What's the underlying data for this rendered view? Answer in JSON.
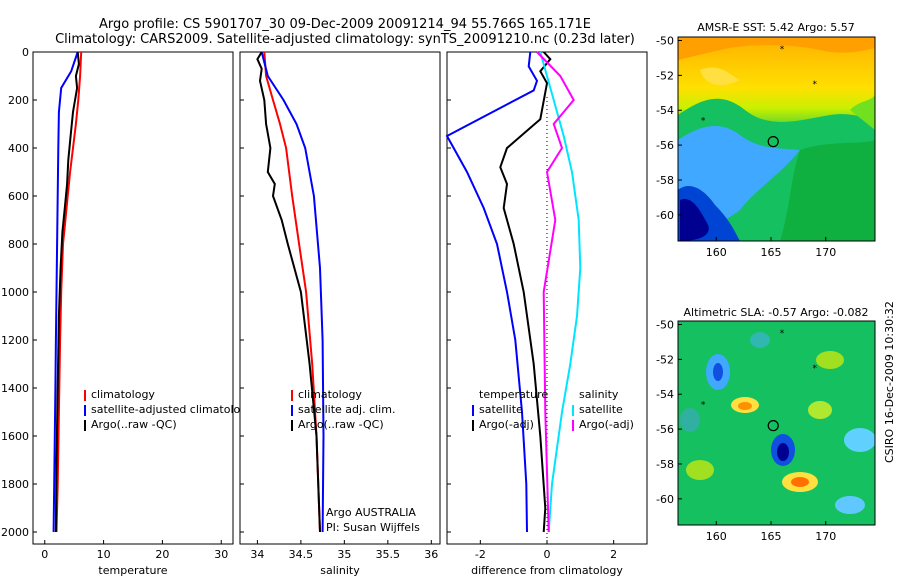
{
  "header": {
    "title_line1": "Argo profile: CS 5901707_30 09-Dec-2009 20091214_94 55.766S 165.171E",
    "title_line2": "Climatology: CARS2009. Satellite-adjusted climatology: synTS_20091210.nc (0.23d later)"
  },
  "colors": {
    "climatology": "#ff0000",
    "satellite": "#0000ff",
    "argo": "#000000",
    "salinity_satellite": "#00e5ff",
    "salinity_argo": "#ff00ff"
  },
  "chart_data": [
    {
      "type": "line",
      "xlabel": "temperature",
      "x_ticks": [
        "0",
        "10",
        "20",
        "30"
      ],
      "xlim": [
        -2,
        32
      ],
      "ylim": [
        2050,
        0
      ],
      "y_ticks": [
        "0",
        "200",
        "400",
        "600",
        "800",
        "1000",
        "1200",
        "1400",
        "1600",
        "1800",
        "2000"
      ],
      "legend": [
        "climatology",
        "satellite-adjusted climatology",
        "Argo(..raw -QC)"
      ],
      "series": [
        {
          "name": "climatology",
          "color": "#ff0000",
          "x": [
            6.2,
            6.0,
            5.7,
            5.3,
            4.8,
            4.3,
            3.9,
            3.5,
            3.1,
            2.8,
            2.6,
            2.4,
            2.2,
            2.0
          ],
          "y": [
            0,
            100,
            200,
            300,
            400,
            500,
            600,
            700,
            800,
            1000,
            1200,
            1500,
            1800,
            2000
          ]
        },
        {
          "name": "satellite-adjusted climatology",
          "color": "#0000ff",
          "x": [
            5.6,
            4.5,
            2.8,
            2.4,
            2.3,
            2.2,
            2.1,
            2.0,
            1.9,
            1.8,
            1.7,
            1.6,
            1.5
          ],
          "y": [
            0,
            80,
            150,
            250,
            400,
            600,
            800,
            1000,
            1200,
            1400,
            1600,
            1800,
            2000
          ]
        },
        {
          "name": "Argo(..raw -QC)",
          "color": "#000000",
          "x": [
            5.6,
            5.8,
            5.3,
            5.5,
            4.8,
            4.4,
            4.0,
            3.8,
            3.4,
            3.0,
            2.7,
            2.4,
            2.2,
            2.0,
            1.9
          ],
          "y": [
            0,
            50,
            100,
            150,
            250,
            350,
            450,
            550,
            650,
            750,
            900,
            1100,
            1400,
            1700,
            2000
          ]
        }
      ]
    },
    {
      "type": "line",
      "xlabel": "salinity",
      "x_ticks": [
        "34",
        "34.5",
        "35",
        "35.5",
        "36"
      ],
      "xlim": [
        33.8,
        36.1
      ],
      "ylim": [
        2050,
        0
      ],
      "legend": [
        "climatology",
        "satellite adj. clim.",
        "Argo(..raw -QC)"
      ],
      "annotation_line1": "Argo AUSTRALIA",
      "annotation_line2": "PI: Susan Wijffels",
      "series": [
        {
          "name": "climatology",
          "color": "#ff0000",
          "x": [
            34.08,
            34.1,
            34.18,
            34.26,
            34.33,
            34.4,
            34.48,
            34.56,
            34.63,
            34.68,
            34.72
          ],
          "y": [
            0,
            100,
            200,
            300,
            400,
            600,
            800,
            1000,
            1300,
            1600,
            2000
          ]
        },
        {
          "name": "satellite adj. clim.",
          "color": "#0000ff",
          "x": [
            34.05,
            34.12,
            34.3,
            34.45,
            34.55,
            34.65,
            34.72,
            34.75,
            34.76,
            34.75
          ],
          "y": [
            0,
            100,
            200,
            300,
            400,
            600,
            900,
            1200,
            1600,
            2000
          ]
        },
        {
          "name": "Argo(..raw -QC)",
          "color": "#000000",
          "x": [
            34.05,
            34.0,
            34.05,
            34.03,
            34.08,
            34.1,
            34.15,
            34.12,
            34.2,
            34.18,
            34.28,
            34.35,
            34.5,
            34.6,
            34.68,
            34.72
          ],
          "y": [
            0,
            30,
            70,
            120,
            200,
            300,
            400,
            500,
            550,
            600,
            700,
            800,
            1000,
            1300,
            1600,
            2000
          ]
        }
      ]
    },
    {
      "type": "line",
      "xlabel": "difference from climatology",
      "x_ticks": [
        "-2",
        "0",
        "2"
      ],
      "xlim": [
        -3.0,
        3.0
      ],
      "ylim": [
        2050,
        0
      ],
      "legend_groups": [
        {
          "title": "temperature",
          "items": [
            "satellite",
            "Argo(-adj)"
          ]
        },
        {
          "title": "salinity",
          "items": [
            "satellite",
            "Argo(-adj)"
          ]
        }
      ],
      "series": [
        {
          "name": "temperature satellite",
          "color": "#0000ff",
          "x": [
            -0.5,
            -0.55,
            -0.3,
            -0.4,
            -3.0,
            -2.4,
            -1.9,
            -1.5,
            -1.2,
            -0.95,
            -0.75,
            -0.62,
            -0.6
          ],
          "y": [
            0,
            60,
            120,
            160,
            350,
            500,
            650,
            800,
            1000,
            1200,
            1500,
            1800,
            2000
          ]
        },
        {
          "name": "temperature Argo(-adj)",
          "color": "#000000",
          "x": [
            -0.1,
            0.1,
            -0.2,
            0.0,
            -0.2,
            -1.2,
            -1.4,
            -1.2,
            -1.3,
            -1.0,
            -0.7,
            -0.4,
            -0.2,
            -0.05,
            -0.1
          ],
          "y": [
            0,
            30,
            80,
            130,
            280,
            400,
            480,
            550,
            650,
            800,
            1000,
            1300,
            1600,
            1900,
            2000
          ]
        },
        {
          "name": "salinity satellite",
          "color": "#00e5ff",
          "x": [
            -0.2,
            0.0,
            0.2,
            0.5,
            0.75,
            0.95,
            1.0,
            0.9,
            0.7,
            0.45,
            0.15,
            0.05
          ],
          "y": [
            0,
            100,
            200,
            350,
            500,
            700,
            900,
            1100,
            1300,
            1500,
            1800,
            2000
          ]
        },
        {
          "name": "salinity Argo(-adj)",
          "color": "#ff00ff",
          "x": [
            -0.3,
            0.4,
            0.8,
            0.2,
            0.45,
            0.0,
            0.25,
            -0.1,
            -0.05,
            0.05
          ],
          "y": [
            0,
            100,
            200,
            300,
            400,
            500,
            700,
            1000,
            1500,
            2000
          ]
        }
      ]
    },
    {
      "type": "heatmap",
      "title": "AMSR-E SST: 5.42 Argo: 5.57",
      "x_ticks": [
        "160",
        "165",
        "170"
      ],
      "y_ticks": [
        "-50",
        "-52",
        "-54",
        "-56",
        "-58",
        "-60"
      ],
      "xlim": [
        156.5,
        174.5
      ],
      "ylim": [
        -61.5,
        -49.8
      ],
      "points": [
        {
          "lon": 165.2,
          "lat": -55.8,
          "marker": "circle"
        },
        {
          "lon": 166,
          "lat": -50.5,
          "marker": "star"
        },
        {
          "lon": 169,
          "lat": -52.5,
          "marker": "star"
        },
        {
          "lon": 158.8,
          "lat": -54.6,
          "marker": "star"
        }
      ]
    },
    {
      "type": "heatmap",
      "title": "Altimetric SLA: -0.57 Argo: -0.082",
      "x_ticks": [
        "160",
        "165",
        "170"
      ],
      "y_ticks": [
        "-50",
        "-52",
        "-54",
        "-56",
        "-58",
        "-60"
      ],
      "xlim": [
        156.5,
        174.5
      ],
      "ylim": [
        -61.5,
        -49.8
      ],
      "points": [
        {
          "lon": 165.2,
          "lat": -55.8,
          "marker": "circle"
        },
        {
          "lon": 166,
          "lat": -50.5,
          "marker": "star"
        },
        {
          "lon": 169,
          "lat": -52.5,
          "marker": "star"
        },
        {
          "lon": 158.8,
          "lat": -54.6,
          "marker": "star"
        }
      ]
    }
  ],
  "side_label": "CSIRO 16-Dec-2009 10:30:32"
}
